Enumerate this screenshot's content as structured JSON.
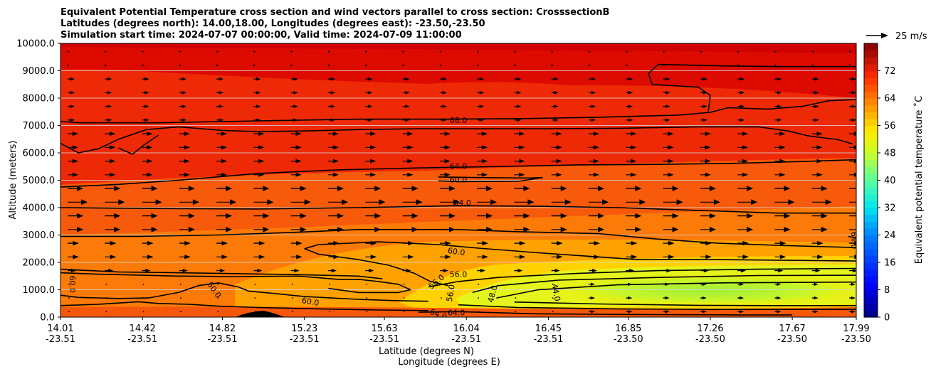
{
  "chart_data": {
    "type": "heatmap",
    "title_lines": [
      "Equivalent Potential Temperature cross section and wind vectors parallel to cross section: CrosssectionB",
      "Latitudes (degrees north): 14.00,18.00, Longitudes (degrees east): -23.50,-23.50",
      "Simulation start time: 2024-07-07 00:00:00, Valid time: 2024-07-09 11:00:00"
    ],
    "ylabel": "Altitude (meters)",
    "xlabel_lines": [
      "Latitude (degrees N)",
      "Longitude (degrees E)"
    ],
    "ylim": [
      0,
      10000
    ],
    "xlim": [
      14.01,
      17.99
    ],
    "y_ticks": [
      {
        "value": 0,
        "label": "0.0"
      },
      {
        "value": 1000,
        "label": "1000.0"
      },
      {
        "value": 2000,
        "label": "2000.0"
      },
      {
        "value": 3000,
        "label": "3000.0"
      },
      {
        "value": 4000,
        "label": "4000.0"
      },
      {
        "value": 5000,
        "label": "5000.0"
      },
      {
        "value": 6000,
        "label": "6000.0"
      },
      {
        "value": 7000,
        "label": "7000.0"
      },
      {
        "value": 8000,
        "label": "8000.0"
      },
      {
        "value": 9000,
        "label": "9000.0"
      },
      {
        "value": 10000,
        "label": "10000.0"
      }
    ],
    "x_ticks": [
      {
        "value": 14.01,
        "lat": "14.01",
        "lon": "-23.51"
      },
      {
        "value": 14.42,
        "lat": "14.42",
        "lon": "-23.51"
      },
      {
        "value": 14.82,
        "lat": "14.82",
        "lon": "-23.51"
      },
      {
        "value": 15.23,
        "lat": "15.23",
        "lon": "-23.51"
      },
      {
        "value": 15.63,
        "lat": "15.63",
        "lon": "-23.51"
      },
      {
        "value": 16.04,
        "lat": "16.04",
        "lon": "-23.51"
      },
      {
        "value": 16.45,
        "lat": "16.45",
        "lon": "-23.51"
      },
      {
        "value": 16.85,
        "lat": "16.85",
        "lon": "-23.50"
      },
      {
        "value": 17.26,
        "lat": "17.26",
        "lon": "-23.50"
      },
      {
        "value": 17.67,
        "lat": "17.67",
        "lon": "-23.50"
      },
      {
        "value": 17.99,
        "lat": "17.99",
        "lon": "-23.50"
      }
    ],
    "colorbar": {
      "label": "Equivalent potential temperature ˚C",
      "min": 0,
      "max": 80,
      "step": 2,
      "tick_values": [
        0,
        8,
        16,
        24,
        32,
        40,
        48,
        56,
        64,
        72
      ],
      "tick_labels": [
        "0",
        "8",
        "16",
        "24",
        "32",
        "40",
        "48",
        "56",
        "64",
        "72"
      ]
    },
    "quiver_key": {
      "label": "25 m/s"
    },
    "contour_labels": [
      {
        "text": "68.0",
        "lat": 16.0,
        "alt": 7200,
        "rot": 0
      },
      {
        "text": "64.0",
        "lat": 16.0,
        "alt": 5520,
        "rot": 0
      },
      {
        "text": "60.0",
        "lat": 16.0,
        "alt": 5020,
        "rot": 0
      },
      {
        "text": "64.0",
        "lat": 16.02,
        "alt": 4180,
        "rot": 0
      },
      {
        "text": "60.0",
        "lat": 15.99,
        "alt": 2400,
        "rot": 8
      },
      {
        "text": "60.0",
        "lat": 14.07,
        "alt": 1200,
        "rot": 90
      },
      {
        "text": "60.0",
        "lat": 14.78,
        "alt": 1000,
        "rot": 55
      },
      {
        "text": "60.0",
        "lat": 15.26,
        "alt": 570,
        "rot": 10
      },
      {
        "text": "56.0",
        "lat": 16.0,
        "alt": 1570,
        "rot": 0
      },
      {
        "text": "56.0",
        "lat": 15.89,
        "alt": 1300,
        "rot": -40
      },
      {
        "text": "56.0",
        "lat": 15.96,
        "alt": 880,
        "rot": -80
      },
      {
        "text": "48.0",
        "lat": 16.17,
        "alt": 850,
        "rot": -75
      },
      {
        "text": "44.0",
        "lat": 16.49,
        "alt": 900,
        "rot": 80
      },
      {
        "text": "64.0",
        "lat": 15.9,
        "alt": 110,
        "rot": 20
      },
      {
        "text": "64.0",
        "lat": 15.99,
        "alt": 170,
        "rot": 0
      },
      {
        "text": "64.0",
        "lat": 17.98,
        "alt": 2800,
        "rot": 90
      }
    ],
    "contours": [
      {
        "level": 68,
        "points": [
          [
            14.01,
            7150
          ],
          [
            14.1,
            7100
          ],
          [
            14.5,
            7100
          ],
          [
            15.0,
            7170
          ],
          [
            15.5,
            7230
          ],
          [
            15.9,
            7230
          ],
          [
            16.3,
            7250
          ],
          [
            16.7,
            7300
          ],
          [
            17.1,
            7380
          ],
          [
            17.26,
            7480
          ],
          [
            17.35,
            7650
          ],
          [
            17.55,
            7600
          ],
          [
            17.72,
            7700
          ],
          [
            17.85,
            7900
          ],
          [
            17.99,
            7950
          ]
        ]
      },
      {
        "level": 68,
        "points": [
          [
            14.01,
            6350
          ],
          [
            14.06,
            6150
          ],
          [
            14.1,
            6000
          ],
          [
            14.2,
            6150
          ],
          [
            14.3,
            6500
          ],
          [
            14.44,
            6850
          ],
          [
            14.6,
            6950
          ],
          [
            14.82,
            6820
          ],
          [
            15.0,
            6780
          ],
          [
            15.23,
            6800
          ],
          [
            15.5,
            6850
          ],
          [
            15.8,
            6880
          ],
          [
            16.1,
            6880
          ],
          [
            16.4,
            6880
          ],
          [
            16.8,
            6900
          ],
          [
            17.2,
            6950
          ],
          [
            17.5,
            6950
          ],
          [
            17.65,
            6800
          ],
          [
            17.75,
            6620
          ],
          [
            17.9,
            6480
          ],
          [
            17.97,
            6330
          ]
        ]
      },
      {
        "level": 68,
        "points": [
          [
            17.99,
            9150
          ],
          [
            17.6,
            9150
          ],
          [
            17.3,
            9180
          ],
          [
            17.0,
            9230
          ],
          [
            16.95,
            8900
          ],
          [
            16.97,
            8500
          ],
          [
            17.2,
            8400
          ],
          [
            17.26,
            8100
          ],
          [
            17.25,
            7500
          ]
        ]
      },
      {
        "level": 68,
        "points": [
          [
            14.3,
            6180
          ],
          [
            14.37,
            5950
          ],
          [
            14.43,
            6300
          ],
          [
            14.5,
            6650
          ]
        ]
      },
      {
        "level": 64,
        "points": [
          [
            14.01,
            4750
          ],
          [
            14.3,
            4850
          ],
          [
            14.6,
            5000
          ],
          [
            15.0,
            5250
          ],
          [
            15.4,
            5380
          ],
          [
            15.8,
            5450
          ],
          [
            16.2,
            5500
          ],
          [
            16.6,
            5560
          ],
          [
            17.0,
            5580
          ],
          [
            17.4,
            5620
          ],
          [
            17.7,
            5680
          ],
          [
            17.99,
            5750
          ]
        ]
      },
      {
        "level": 60,
        "points": [
          [
            15.9,
            5120
          ],
          [
            16.1,
            5100
          ],
          [
            16.35,
            5080
          ],
          [
            16.42,
            5100
          ],
          [
            16.3,
            4960
          ],
          [
            16.0,
            4950
          ],
          [
            15.9,
            4980
          ]
        ]
      },
      {
        "level": 64,
        "points": [
          [
            14.01,
            4000
          ],
          [
            14.3,
            3980
          ],
          [
            14.6,
            3960
          ],
          [
            15.0,
            3950
          ],
          [
            15.5,
            4000
          ],
          [
            16.0,
            4070
          ],
          [
            16.4,
            4050
          ],
          [
            16.8,
            4000
          ],
          [
            17.2,
            3900
          ],
          [
            17.6,
            3800
          ],
          [
            17.99,
            3800
          ]
        ]
      },
      {
        "level": 64,
        "points": [
          [
            14.01,
            2950
          ],
          [
            14.4,
            2950
          ],
          [
            14.8,
            3000
          ],
          [
            15.2,
            3100
          ],
          [
            15.5,
            3200
          ],
          [
            16.0,
            3200
          ],
          [
            16.3,
            3120
          ],
          [
            16.7,
            3050
          ],
          [
            17.0,
            2850
          ],
          [
            17.3,
            2700
          ],
          [
            17.6,
            2620
          ],
          [
            17.99,
            2540
          ]
        ]
      },
      {
        "level": 60,
        "points": [
          [
            15.23,
            2500
          ],
          [
            15.3,
            2650
          ],
          [
            15.6,
            2750
          ],
          [
            15.9,
            2650
          ],
          [
            16.1,
            2520
          ],
          [
            16.4,
            2350
          ],
          [
            16.7,
            2200
          ],
          [
            16.9,
            2100
          ],
          [
            17.3,
            2100
          ],
          [
            17.6,
            2080
          ],
          [
            17.99,
            2050
          ]
        ]
      },
      {
        "level": 60,
        "points": [
          [
            15.23,
            2500
          ],
          [
            15.3,
            2300
          ],
          [
            15.5,
            2100
          ],
          [
            15.65,
            1900
          ],
          [
            15.78,
            1600
          ],
          [
            15.86,
            1300
          ],
          [
            15.95,
            1150
          ]
        ]
      },
      {
        "level": 60,
        "points": [
          [
            14.01,
            1620
          ],
          [
            14.2,
            1570
          ],
          [
            14.6,
            1500
          ],
          [
            14.9,
            1480
          ],
          [
            15.2,
            1500
          ],
          [
            15.4,
            1380
          ],
          [
            15.5,
            1380
          ],
          [
            15.6,
            1300
          ],
          [
            15.7,
            1200
          ],
          [
            15.76,
            1000
          ],
          [
            15.7,
            900
          ],
          [
            15.5,
            900
          ],
          [
            15.35,
            1050
          ]
        ]
      },
      {
        "level": 60,
        "points": [
          [
            14.01,
            1750
          ],
          [
            14.3,
            1650
          ],
          [
            14.8,
            1600
          ],
          [
            15.2,
            1550
          ],
          [
            15.5,
            1500
          ],
          [
            15.62,
            1400
          ]
        ]
      },
      {
        "level": 60,
        "points": [
          [
            14.01,
            800
          ],
          [
            14.1,
            720
          ],
          [
            14.3,
            680
          ],
          [
            14.45,
            700
          ],
          [
            14.6,
            900
          ],
          [
            14.7,
            1150
          ],
          [
            14.8,
            1250
          ],
          [
            14.9,
            1100
          ],
          [
            14.95,
            950
          ],
          [
            15.1,
            850
          ],
          [
            15.23,
            750
          ],
          [
            15.5,
            650
          ],
          [
            15.7,
            600
          ],
          [
            15.85,
            580
          ]
        ]
      },
      {
        "level": 64,
        "points": [
          [
            14.01,
            420
          ],
          [
            14.2,
            470
          ],
          [
            14.4,
            560
          ],
          [
            14.5,
            500
          ],
          [
            14.65,
            470
          ],
          [
            14.8,
            400
          ],
          [
            15.0,
            350
          ],
          [
            15.3,
            300
          ],
          [
            15.6,
            260
          ],
          [
            15.85,
            240
          ]
        ]
      },
      {
        "level": 56,
        "points": [
          [
            15.85,
            1100
          ],
          [
            16.0,
            1300
          ],
          [
            16.2,
            1450
          ],
          [
            16.6,
            1600
          ],
          [
            17.0,
            1700
          ],
          [
            17.5,
            1750
          ],
          [
            17.99,
            1780
          ]
        ]
      },
      {
        "level": 52,
        "points": [
          [
            16.07,
            900
          ],
          [
            16.2,
            1150
          ],
          [
            16.5,
            1350
          ],
          [
            17.0,
            1450
          ],
          [
            17.5,
            1520
          ],
          [
            17.99,
            1530
          ]
        ]
      },
      {
        "level": 48,
        "points": [
          [
            16.19,
            700
          ],
          [
            16.4,
            1000
          ],
          [
            16.8,
            1180
          ],
          [
            17.3,
            1250
          ],
          [
            17.99,
            1280
          ]
        ]
      },
      {
        "level": 48,
        "points": [
          [
            16.28,
            550
          ],
          [
            16.7,
            480
          ],
          [
            17.2,
            430
          ],
          [
            17.6,
            420
          ],
          [
            17.99,
            420
          ]
        ]
      },
      {
        "level": 56,
        "points": [
          [
            16.0,
            450
          ],
          [
            16.3,
            350
          ],
          [
            16.8,
            300
          ],
          [
            17.3,
            280
          ],
          [
            17.99,
            280
          ]
        ]
      },
      {
        "level": 64,
        "points": [
          [
            15.8,
            180
          ],
          [
            16.0,
            200
          ],
          [
            16.4,
            120
          ],
          [
            17.0,
            90
          ],
          [
            17.4,
            80
          ],
          [
            17.67,
            80
          ]
        ]
      },
      {
        "level": 64,
        "points": [
          [
            17.95,
            2950
          ],
          [
            17.99,
            2900
          ]
        ]
      }
    ]
  }
}
